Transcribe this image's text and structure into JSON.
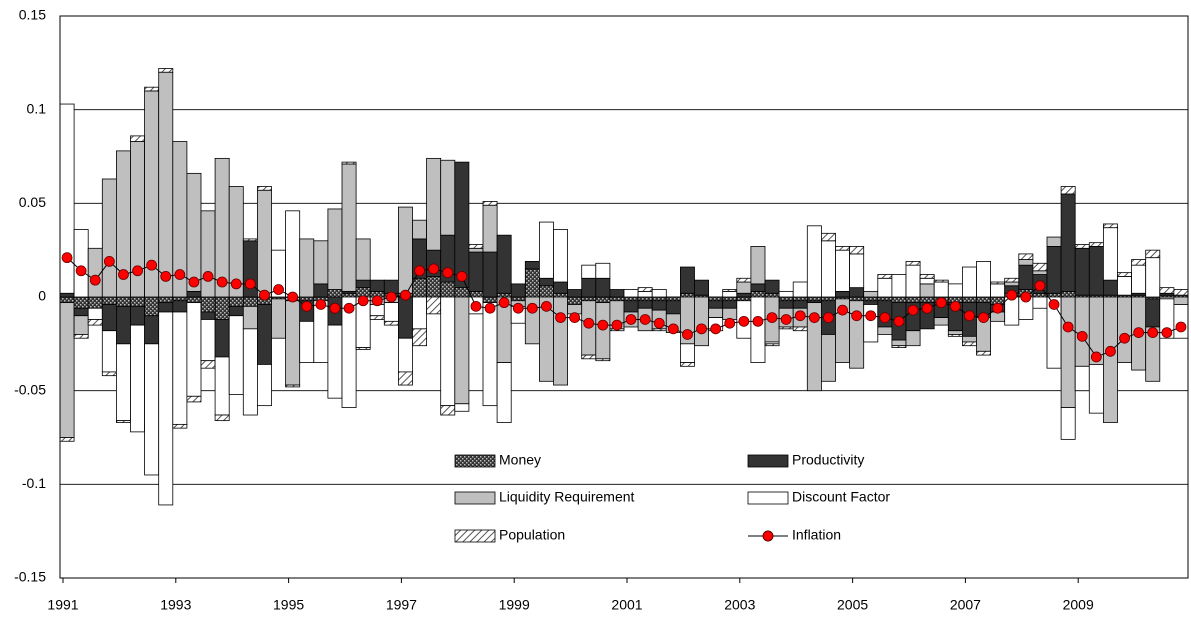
{
  "chart_data": {
    "type": "bar",
    "stacking": "diverging",
    "categories": [
      "1991",
      null,
      null,
      null,
      null,
      null,
      null,
      null,
      "1993",
      null,
      null,
      null,
      null,
      null,
      null,
      null,
      "1995",
      null,
      null,
      null,
      null,
      null,
      null,
      null,
      "1997",
      null,
      null,
      null,
      null,
      null,
      null,
      null,
      "1999",
      null,
      null,
      null,
      null,
      null,
      null,
      null,
      "2001",
      null,
      null,
      null,
      null,
      null,
      null,
      null,
      "2003",
      null,
      null,
      null,
      null,
      null,
      null,
      null,
      "2005",
      null,
      null,
      null,
      null,
      null,
      null,
      null,
      "2007",
      null,
      null,
      null,
      null,
      null,
      null,
      null,
      "2009",
      null,
      null,
      null,
      null,
      null,
      null,
      null
    ],
    "ylim": [
      -0.15,
      0.15
    ],
    "yticks": [
      -0.15,
      -0.1,
      -0.05,
      0,
      0.05,
      0.1,
      0.15
    ],
    "grid": true,
    "series": [
      {
        "name": "Money",
        "color": "#555555",
        "pattern": "crosshatch",
        "values": [
          -0.003,
          -0.006,
          -0.006,
          -0.004,
          -0.005,
          -0.005,
          -0.01,
          -0.003,
          -0.002,
          -0.003,
          -0.008,
          -0.012,
          -0.005,
          -0.005,
          -0.004,
          -0.001,
          -0.002,
          -0.002,
          -0.002,
          0.004,
          0.002,
          0.005,
          0.003,
          0.002,
          0.002,
          0.01,
          0.011,
          0.008,
          0.005,
          0.003,
          -0.003,
          0.002,
          -0.002,
          0.015,
          0.006,
          0.002,
          -0.004,
          -0.002,
          -0.003,
          -0.002,
          -0.002,
          -0.002,
          -0.002,
          -0.002,
          0.002,
          0.001,
          -0.002,
          -0.002,
          -0.002,
          0.003,
          0.002,
          -0.002,
          -0.002,
          -0.002,
          -0.002,
          -0.001,
          -0.002,
          -0.002,
          -0.002,
          -0.003,
          -0.003,
          -0.003,
          -0.003,
          -0.003,
          -0.003,
          -0.003,
          -0.004,
          0.002,
          0.004,
          0.002,
          0.002,
          0.003,
          0.001,
          0.001,
          0.001,
          0.001,
          0.001,
          -0.001,
          0.001,
          0.001
        ]
      },
      {
        "name": "Productivity",
        "color": "#333333",
        "values": [
          0.002,
          -0.004,
          0,
          -0.014,
          -0.02,
          -0.01,
          -0.015,
          -0.005,
          -0.006,
          0.003,
          -0.004,
          -0.02,
          -0.005,
          0.03,
          -0.032,
          0,
          0,
          -0.011,
          0.007,
          -0.015,
          0.001,
          0.004,
          0.006,
          0.007,
          -0.022,
          0.021,
          0.014,
          0.025,
          0.067,
          0.021,
          0.024,
          0.031,
          0.007,
          0.004,
          0.004,
          0.006,
          0.004,
          0.01,
          0.01,
          0.004,
          -0.006,
          -0.004,
          -0.005,
          -0.007,
          0.014,
          0.008,
          -0.004,
          -0.004,
          0.002,
          0.004,
          0.007,
          -0.004,
          -0.004,
          -0.001,
          -0.018,
          0.003,
          0.005,
          -0.002,
          -0.014,
          -0.02,
          -0.015,
          -0.014,
          -0.008,
          -0.015,
          -0.018,
          -0.008,
          -0.004,
          0.004,
          0.013,
          0.01,
          0.025,
          0.052,
          0.025,
          0.026,
          0.008,
          0,
          0.001,
          -0.015,
          0.001,
          0
        ]
      },
      {
        "name": "Liquidity Requirement",
        "color": "#bfbfbf",
        "values": [
          -0.072,
          -0.01,
          0.026,
          0.063,
          0.078,
          0.083,
          0.11,
          0.12,
          0.083,
          0.063,
          0.046,
          0.074,
          0.059,
          -0.012,
          0.057,
          -0.021,
          -0.045,
          0.031,
          0.023,
          0.043,
          0.068,
          0.022,
          -0.004,
          -0.003,
          0.046,
          0.01,
          0.049,
          0.04,
          -0.057,
          0.002,
          0.025,
          -0.035,
          -0.003,
          -0.025,
          -0.045,
          -0.047,
          -0.005,
          -0.029,
          -0.03,
          -0.015,
          -0.008,
          -0.012,
          -0.01,
          -0.01,
          -0.025,
          -0.026,
          -0.005,
          -0.006,
          0.006,
          0.02,
          -0.024,
          -0.01,
          -0.01,
          -0.047,
          -0.025,
          -0.034,
          -0.036,
          0.003,
          -0.004,
          -0.003,
          -0.008,
          0.007,
          -0.004,
          -0.002,
          -0.003,
          -0.018,
          -0.005,
          0.002,
          0.003,
          0.002,
          0.005,
          -0.059,
          -0.037,
          -0.036,
          -0.067,
          -0.035,
          -0.039,
          -0.029,
          -0.001,
          -0.004
        ]
      },
      {
        "name": "Discount Factor",
        "color": "#ffffff",
        "values": [
          0.101,
          0.036,
          -0.006,
          -0.022,
          -0.041,
          -0.057,
          -0.07,
          -0.103,
          -0.06,
          -0.05,
          -0.022,
          -0.031,
          -0.042,
          -0.046,
          -0.022,
          0.025,
          0.046,
          -0.022,
          -0.033,
          -0.039,
          -0.059,
          -0.027,
          -0.006,
          -0.01,
          -0.018,
          -0.017,
          0,
          -0.058,
          -0.004,
          -0.009,
          -0.055,
          -0.032,
          -0.009,
          0,
          0.03,
          0.028,
          0,
          0.007,
          0.008,
          0,
          0.004,
          0.003,
          0.004,
          0,
          -0.01,
          0,
          -0.007,
          0.003,
          -0.02,
          -0.035,
          -0.001,
          0.003,
          0.008,
          0.038,
          0.03,
          0.022,
          0.018,
          -0.02,
          0.01,
          0.012,
          0.017,
          0.003,
          0.008,
          0.007,
          0.016,
          0.019,
          0.007,
          -0.015,
          -0.012,
          -0.006,
          -0.038,
          -0.017,
          -0.013,
          -0.026,
          0.028,
          0.01,
          0.015,
          0.021,
          -0.021,
          -0.018
        ]
      },
      {
        "name": "Population",
        "color": "#888888",
        "pattern": "diagonal",
        "values": [
          -0.002,
          -0.002,
          -0.003,
          -0.002,
          -0.001,
          0.003,
          0.002,
          0.002,
          -0.002,
          -0.003,
          -0.004,
          -0.003,
          0,
          0.001,
          0.002,
          0,
          -0.001,
          0,
          0,
          0,
          0.001,
          -0.001,
          -0.002,
          -0.002,
          -0.007,
          -0.009,
          -0.009,
          -0.005,
          0,
          0.002,
          0.002,
          0,
          0,
          0,
          0,
          0,
          0,
          -0.002,
          -0.001,
          -0.001,
          0,
          0.002,
          -0.001,
          0,
          -0.002,
          0,
          0,
          0.001,
          0.002,
          0,
          -0.001,
          -0.001,
          -0.002,
          0,
          0.004,
          0.002,
          0.004,
          0,
          0.002,
          -0.001,
          0.002,
          0.002,
          0.001,
          -0.001,
          -0.002,
          -0.002,
          0.001,
          0.002,
          0.003,
          0.004,
          0,
          0.004,
          0.002,
          0.002,
          0.002,
          0.002,
          0.003,
          0.004,
          0.003,
          0.003
        ]
      },
      {
        "name": "Inflation",
        "type": "line",
        "color": "#ff0000",
        "values": [
          0.021,
          0.014,
          0.009,
          0.019,
          0.012,
          0.014,
          0.017,
          0.011,
          0.012,
          0.008,
          0.011,
          0.008,
          0.007,
          0.007,
          0.001,
          0.004,
          0.0,
          -0.005,
          -0.004,
          -0.006,
          -0.006,
          -0.002,
          -0.002,
          0.0,
          0.001,
          0.014,
          0.015,
          0.013,
          0.011,
          -0.005,
          -0.006,
          -0.003,
          -0.006,
          -0.006,
          -0.005,
          -0.011,
          -0.011,
          -0.014,
          -0.015,
          -0.015,
          -0.012,
          -0.012,
          -0.014,
          -0.017,
          -0.02,
          -0.017,
          -0.017,
          -0.014,
          -0.013,
          -0.013,
          -0.011,
          -0.012,
          -0.01,
          -0.011,
          -0.011,
          -0.007,
          -0.01,
          -0.01,
          -0.011,
          -0.013,
          -0.007,
          -0.006,
          -0.003,
          -0.005,
          -0.01,
          -0.011,
          -0.006,
          0.001,
          0.0,
          0.006,
          -0.004,
          -0.016,
          -0.021,
          -0.032,
          -0.029,
          -0.022,
          -0.019,
          -0.019,
          -0.019,
          -0.016
        ]
      }
    ]
  }
}
